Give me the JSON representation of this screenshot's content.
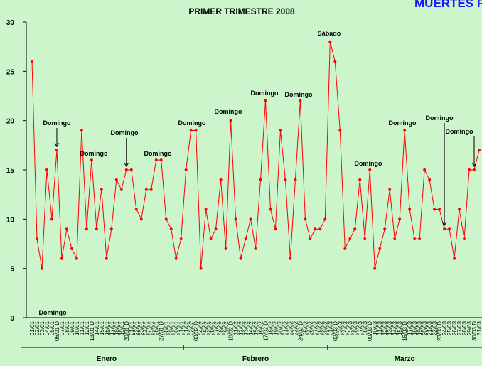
{
  "chart_data": {
    "type": "line",
    "title": "PRIMER TRIMESTRE 2008",
    "subtitle": "MUERTES POR HOMIC",
    "categories": [
      "01/01",
      "02/01",
      "03/01",
      "04/01",
      "05/01",
      "06/01 D",
      "07/01",
      "08/01",
      "09/01",
      "10/01",
      "11/01",
      "12/01",
      "13/01 D",
      "14/01",
      "15/01",
      "16/01",
      "17/01",
      "18/01",
      "19/01",
      "20/01 D",
      "21/01",
      "22/01",
      "23/01",
      "24/01",
      "25/01",
      "26/01",
      "27/01 D",
      "28/01",
      "29/01",
      "30/01",
      "31/01",
      "01/02",
      "02/02",
      "03/02 D",
      "04/02",
      "05/02",
      "06/02",
      "07/02",
      "08/02",
      "09/02",
      "10/02 D",
      "11/02",
      "12/02",
      "13/02",
      "14/02",
      "15/02",
      "16/02",
      "17/02 D",
      "18/02",
      "19/02",
      "20/02",
      "21/02",
      "22/02",
      "23/02",
      "24/02 D",
      "25/02",
      "26/02",
      "27/02",
      "28/02",
      "29/02",
      "01/03",
      "02/03 D",
      "03/03",
      "04/03",
      "05/03",
      "06/03",
      "07/03",
      "08/03",
      "09/03 D",
      "10/03",
      "11/03",
      "12/03",
      "13/03",
      "14/03",
      "15/03",
      "16/03 D",
      "17/03",
      "18/03",
      "19/03",
      "20/03",
      "21/03",
      "22/03",
      "23/03 D",
      "24/03",
      "25/03",
      "26/03",
      "27/03",
      "28/03",
      "29/03",
      "30/03 D",
      "31/03"
    ],
    "series": [
      {
        "name": "Muertes",
        "color": "#ff0000",
        "values": [
          26,
          8,
          5,
          15,
          10,
          17,
          6,
          9,
          7,
          6,
          19,
          9,
          16,
          9,
          13,
          6,
          9,
          14,
          13,
          15,
          15,
          11,
          10,
          13,
          13,
          16,
          16,
          10,
          9,
          6,
          8,
          15,
          19,
          19,
          5,
          11,
          8,
          9,
          14,
          7,
          20,
          10,
          6,
          8,
          10,
          7,
          14,
          22,
          11,
          9,
          19,
          14,
          6,
          14,
          22,
          10,
          8,
          9,
          9,
          10,
          28,
          26,
          19,
          7,
          8,
          9,
          14,
          8,
          15,
          5,
          7,
          9,
          13,
          8,
          10,
          19,
          11,
          8,
          8,
          15,
          14,
          11,
          11,
          9,
          9,
          6,
          11,
          8,
          15,
          15,
          17
        ]
      }
    ],
    "months": [
      "Enero",
      "Febrero",
      "Marzo"
    ],
    "annotations": [
      "Domingo",
      "Domingo",
      "Domingo",
      "Domingo",
      "Domingo",
      "Domingo",
      "Domingo",
      "Domingo",
      "Sábado",
      "Domingo",
      "Domingo",
      "Domingo",
      "Domingo",
      "Domingo"
    ],
    "ylim": [
      0,
      30
    ],
    "yticks": [
      0,
      5,
      10,
      15,
      20,
      25,
      30
    ]
  }
}
